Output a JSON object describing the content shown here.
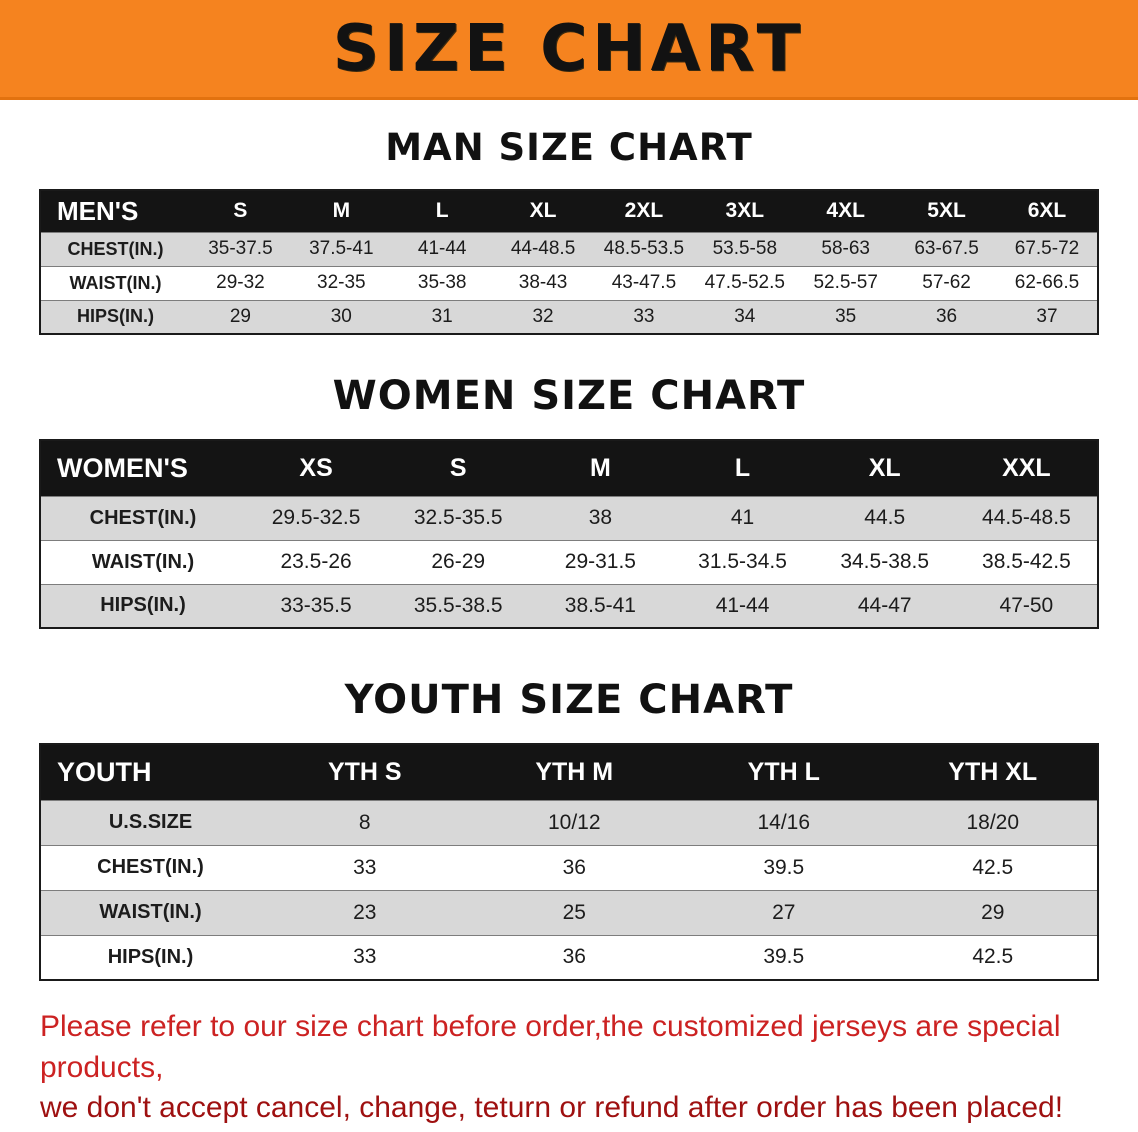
{
  "page": {
    "title": "SIZE CHART"
  },
  "colors": {
    "banner_background": "#F5831F",
    "table_header_background": "#141414",
    "table_header_text": "#FFFFFF",
    "row_stripe": "#D8D8D8",
    "footer_line1": "#CC2222",
    "footer_line2": "#9E1010"
  },
  "sections": {
    "men": {
      "heading": "MAN SIZE CHART",
      "table": {
        "header": [
          "MEN'S",
          "S",
          "M",
          "L",
          "XL",
          "2XL",
          "3XL",
          "4XL",
          "5XL",
          "6XL"
        ],
        "rows": [
          [
            "CHEST(IN.)",
            "35-37.5",
            "37.5-41",
            "41-44",
            "44-48.5",
            "48.5-53.5",
            "53.5-58",
            "58-63",
            "63-67.5",
            "67.5-72"
          ],
          [
            "WAIST(IN.)",
            "29-32",
            "32-35",
            "35-38",
            "38-43",
            "43-47.5",
            "47.5-52.5",
            "52.5-57",
            "57-62",
            "62-66.5"
          ],
          [
            "HIPS(IN.)",
            "29",
            "30",
            "31",
            "32",
            "33",
            "34",
            "35",
            "36",
            "37"
          ]
        ]
      }
    },
    "women": {
      "heading": "WOMEN SIZE CHART",
      "table": {
        "header": [
          "WOMEN'S",
          "XS",
          "S",
          "M",
          "L",
          "XL",
          "XXL"
        ],
        "rows": [
          [
            "CHEST(IN.)",
            "29.5-32.5",
            "32.5-35.5",
            "38",
            "41",
            "44.5",
            "44.5-48.5"
          ],
          [
            "WAIST(IN.)",
            "23.5-26",
            "26-29",
            "29-31.5",
            "31.5-34.5",
            "34.5-38.5",
            "38.5-42.5"
          ],
          [
            "HIPS(IN.)",
            "33-35.5",
            "35.5-38.5",
            "38.5-41",
            "41-44",
            "44-47",
            "47-50"
          ]
        ]
      }
    },
    "youth": {
      "heading": "YOUTH SIZE CHART",
      "table": {
        "header": [
          "YOUTH",
          "YTH S",
          "YTH M",
          "YTH L",
          "YTH XL"
        ],
        "rows": [
          [
            "U.S.SIZE",
            "8",
            "10/12",
            "14/16",
            "18/20"
          ],
          [
            "CHEST(IN.)",
            "33",
            "36",
            "39.5",
            "42.5"
          ],
          [
            "WAIST(IN.)",
            "23",
            "25",
            "27",
            "29"
          ],
          [
            "HIPS(IN.)",
            "33",
            "36",
            "39.5",
            "42.5"
          ]
        ]
      }
    }
  },
  "footer": {
    "line1": "Please refer to our size chart before order,the customized jerseys are special products,",
    "line2": "we don't accept cancel, change, teturn or refund after order has been placed!"
  }
}
